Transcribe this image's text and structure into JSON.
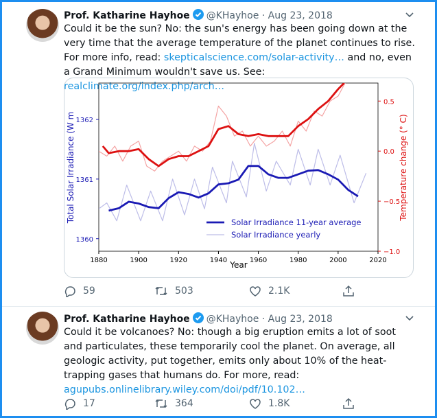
{
  "tweets": [
    {
      "name": "Prof. Katharine Hayhoe",
      "handle": "@KHayhoe",
      "sep": "·",
      "date": "Aug 23, 2018",
      "text": [
        "Could it be the sun? No: the sun's energy has been going down at the very time that the average temperature of the planet continues to rise. For more info, read: ",
        "skepticalscience.com/solar-activity…",
        " and no, even a Grand Minimum wouldn't save us. See: ",
        "realclimate.org/index.php/arch…"
      ],
      "replies": "59",
      "retweets": "503",
      "likes": "2.1K"
    },
    {
      "name": "Prof. Katharine Hayhoe",
      "handle": "@KHayhoe",
      "sep": "·",
      "date": "Aug 23, 2018",
      "text": [
        "Could it be volcanoes? No: though a big eruption emits a lot of soot and particulates, these temporarily cool the planet. On average, all geologic activity, put together, emits only about 10% of the heat-trapping gases that humans do. For more, read: ",
        "agupubs.onlinelibrary.wiley.com/doi/pdf/10.102…"
      ],
      "replies": "17",
      "retweets": "364",
      "likes": "1.8K"
    }
  ],
  "chart_data": {
    "type": "line",
    "xlabel": "Year",
    "ylabel": "Total Solar Irradiance (W m",
    "y2label": "Temperature change (° C)",
    "xlim": [
      1880,
      2020
    ],
    "xticks": [
      1880,
      1900,
      1920,
      1940,
      1960,
      1980,
      2000,
      2020
    ],
    "ylim": [
      1359.79,
      1362.61
    ],
    "yticks": [
      1360,
      1361,
      1362
    ],
    "y2lim": [
      -1.0,
      0.68
    ],
    "y2ticks": [
      {
        "value": -1.0,
        "label": "−1.0"
      },
      {
        "value": -0.5,
        "label": "−0.5"
      },
      {
        "value": 0,
        "label": "0.0"
      },
      0.5
    ],
    "legend": "lower right",
    "series": [
      {
        "color": "#f4a3a3",
        "axis": "y2",
        "x": [
          1880,
          1884,
          1888,
          1892,
          1896,
          1900,
          1904,
          1908,
          1912,
          1916,
          1920,
          1924,
          1928,
          1932,
          1936,
          1940,
          1944,
          1948,
          1952,
          1956,
          1960,
          1964,
          1968,
          1972,
          1976,
          1980,
          1984,
          1988,
          1992,
          1996,
          2000,
          2004
        ],
        "values": [
          0.0,
          -0.05,
          0.05,
          -0.1,
          0.05,
          0.1,
          -0.15,
          -0.2,
          -0.1,
          -0.05,
          0.0,
          -0.1,
          0.05,
          0.0,
          0.1,
          0.45,
          0.35,
          0.15,
          0.2,
          0.05,
          0.15,
          0.05,
          0.1,
          0.2,
          0.05,
          0.3,
          0.2,
          0.4,
          0.35,
          0.5,
          0.55,
          0.7
        ]
      },
      {
        "color": "#dd1111",
        "axis": "y2",
        "x": [
          1882,
          1885,
          1890,
          1895,
          1900,
          1905,
          1910,
          1915,
          1920,
          1925,
          1930,
          1935,
          1940,
          1945,
          1950,
          1955,
          1960,
          1965,
          1970,
          1975,
          1980,
          1985,
          1990,
          1995,
          2000,
          2003
        ],
        "values": [
          0.05,
          -0.02,
          0.0,
          0.0,
          0.02,
          -0.08,
          -0.15,
          -0.08,
          -0.05,
          -0.05,
          0.0,
          0.05,
          0.22,
          0.25,
          0.17,
          0.15,
          0.17,
          0.15,
          0.15,
          0.15,
          0.25,
          0.32,
          0.42,
          0.5,
          0.62,
          0.68
        ]
      },
      {
        "name": "Solar Irradiance yearly",
        "color": "#bdbde8",
        "axis": "y",
        "x": [
          1880,
          1884,
          1889,
          1894,
          1901,
          1906,
          1912,
          1917,
          1923,
          1928,
          1933,
          1937,
          1944,
          1947,
          1954,
          1958,
          1964,
          1969,
          1976,
          1980,
          1986,
          1990,
          1996,
          2001,
          2008,
          2014
        ],
        "values": [
          1360.5,
          1360.6,
          1360.3,
          1360.9,
          1360.3,
          1360.8,
          1360.3,
          1361.0,
          1360.4,
          1361.0,
          1360.5,
          1361.2,
          1360.6,
          1361.3,
          1360.7,
          1361.6,
          1360.8,
          1361.3,
          1360.9,
          1361.5,
          1360.9,
          1361.5,
          1360.9,
          1361.4,
          1360.6,
          1361.1
        ]
      },
      {
        "name": "Solar Irradiance 11-year average",
        "color": "#1a1ab4",
        "axis": "y",
        "x": [
          1885,
          1890,
          1895,
          1900,
          1905,
          1910,
          1915,
          1920,
          1925,
          1930,
          1935,
          1940,
          1945,
          1950,
          1955,
          1960,
          1965,
          1970,
          1975,
          1980,
          1985,
          1990,
          1995,
          2000,
          2005,
          2010
        ],
        "values": [
          1360.47,
          1360.51,
          1360.62,
          1360.59,
          1360.53,
          1360.51,
          1360.68,
          1360.78,
          1360.75,
          1360.69,
          1360.76,
          1360.91,
          1360.93,
          1360.99,
          1361.22,
          1361.22,
          1361.08,
          1361.02,
          1361.02,
          1361.08,
          1361.14,
          1361.15,
          1361.08,
          1360.99,
          1360.82,
          1360.71
        ]
      }
    ]
  }
}
